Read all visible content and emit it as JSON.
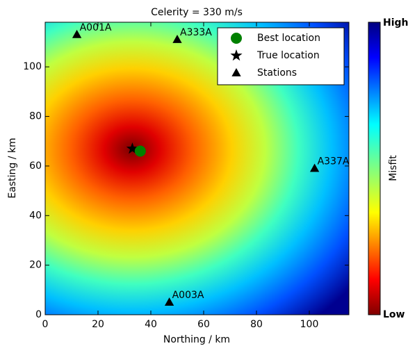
{
  "chart_data": {
    "type": "scatter",
    "title": "Celerity = 330 m/s",
    "x_label": "Northing / km",
    "y_label": "Easting / km",
    "xlim": [
      0,
      115
    ],
    "ylim": [
      0,
      118
    ],
    "xticks": [
      0,
      20,
      40,
      60,
      80,
      100
    ],
    "yticks": [
      0,
      20,
      40,
      60,
      80,
      100
    ],
    "legend": "upper right",
    "series": [
      {
        "name": "Best location",
        "color": "#008000",
        "marker": "circle",
        "x": [
          36
        ],
        "y": [
          66
        ]
      },
      {
        "name": "True location",
        "color": "#000000",
        "marker": "star",
        "x": [
          33
        ],
        "y": [
          67
        ]
      },
      {
        "name": "Stations",
        "color": "#000000",
        "marker": "triangle",
        "x": [
          12,
          50,
          102,
          47
        ],
        "y": [
          113,
          111,
          59,
          5
        ],
        "labels": [
          "A001A",
          "A333A",
          "A337A",
          "A003A"
        ]
      }
    ],
    "colorbar": {
      "label": "Misfit",
      "high": "High",
      "low": "Low"
    }
  }
}
